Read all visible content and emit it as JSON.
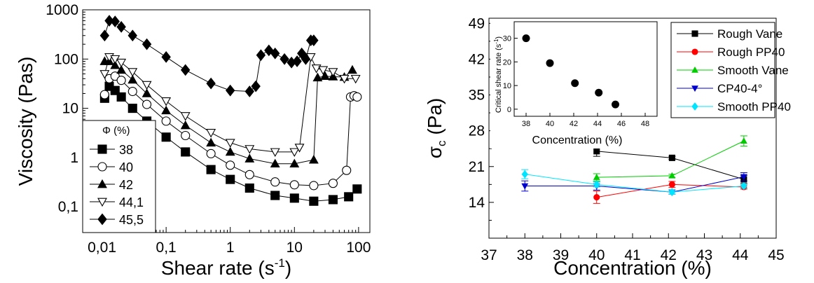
{
  "chart_data": [
    {
      "type": "scatter",
      "xscale": "log",
      "yscale": "log",
      "xlabel": "Shear rate (s",
      "xlabel_sup": "-1",
      "xlabel_close": ")",
      "ylabel": "Viscosity (Pas)",
      "xlim": [
        0.005,
        150
      ],
      "ylim": [
        0.03,
        1000
      ],
      "xticks": [
        0.01,
        0.1,
        1,
        10,
        100
      ],
      "xtick_labels": [
        "0,01",
        "0,1",
        "1",
        "10",
        "100"
      ],
      "yticks": [
        0.1,
        1,
        10,
        100,
        1000
      ],
      "ytick_labels": [
        "0,1",
        "1",
        "10",
        "100",
        "1000"
      ],
      "legend_title": "Φ (%)",
      "legend_position": "bottom-left",
      "series": [
        {
          "name": "38",
          "marker": "square-filled",
          "x": [
            0.011,
            0.013,
            0.016,
            0.02,
            0.03,
            0.05,
            0.1,
            0.2,
            0.5,
            1,
            2,
            5,
            10,
            20,
            40,
            70,
            95
          ],
          "y": [
            16,
            28,
            23,
            17,
            10,
            5.5,
            2.6,
            1.3,
            0.57,
            0.36,
            0.24,
            0.17,
            0.15,
            0.13,
            0.14,
            0.16,
            0.23
          ]
        },
        {
          "name": "40",
          "marker": "circle-open",
          "x": [
            0.011,
            0.013,
            0.016,
            0.02,
            0.03,
            0.05,
            0.1,
            0.2,
            0.5,
            1,
            2,
            5,
            10,
            20,
            40,
            65,
            75,
            85,
            95
          ],
          "y": [
            19,
            40,
            45,
            37,
            22,
            12,
            5.5,
            2.8,
            1.2,
            0.7,
            0.45,
            0.32,
            0.28,
            0.27,
            0.3,
            0.55,
            17,
            18,
            17
          ]
        },
        {
          "name": "42",
          "marker": "triangle-filled",
          "x": [
            0.011,
            0.013,
            0.016,
            0.02,
            0.03,
            0.05,
            0.1,
            0.2,
            0.5,
            1,
            2,
            5,
            10,
            20,
            23,
            30,
            40,
            60,
            80
          ],
          "y": [
            90,
            90,
            75,
            60,
            38,
            20,
            9,
            4.5,
            2,
            1.3,
            0.95,
            0.75,
            0.75,
            0.9,
            42,
            45,
            44,
            43,
            60
          ]
        },
        {
          "name": "44,1",
          "marker": "triangle-down-open",
          "x": [
            0.011,
            0.013,
            0.016,
            0.02,
            0.03,
            0.05,
            0.1,
            0.2,
            0.5,
            1,
            2,
            5,
            10,
            12,
            18,
            22,
            28,
            40,
            60,
            90
          ],
          "y": [
            50,
            110,
            100,
            85,
            55,
            30,
            14,
            7,
            3.2,
            2,
            1.5,
            1.3,
            1.3,
            1.6,
            110,
            65,
            60,
            55,
            40,
            40
          ]
        },
        {
          "name": "45,5",
          "marker": "diamond-filled",
          "x": [
            0.011,
            0.013,
            0.016,
            0.02,
            0.03,
            0.05,
            0.1,
            0.2,
            0.5,
            1,
            2,
            2.5,
            3,
            4,
            5,
            7,
            9,
            11,
            13,
            15,
            18,
            20
          ],
          "y": [
            300,
            600,
            580,
            450,
            300,
            200,
            110,
            60,
            32,
            23,
            22,
            28,
            120,
            150,
            130,
            100,
            85,
            90,
            130,
            100,
            240,
            240
          ]
        }
      ]
    },
    {
      "type": "line",
      "xlabel": "Concentration (%)",
      "ylabel": "σ",
      "ylabel_sub": "c",
      "ylabel_unit": " (Pa)",
      "xlim": [
        37,
        45
      ],
      "ylim": [
        7,
        50
      ],
      "xticks": [
        37,
        38,
        39,
        40,
        41,
        42,
        43,
        44,
        45
      ],
      "yticks": [
        14,
        21,
        28,
        35,
        42,
        49
      ],
      "legend_position": "top-right",
      "series": [
        {
          "name": "Rough Vane",
          "color": "#000000",
          "marker": "square",
          "x": [
            40,
            42.1,
            44.1
          ],
          "y": [
            24,
            22.7,
            18.5
          ],
          "err": [
            1.0,
            0.3,
            0.8
          ]
        },
        {
          "name": "Rough PP40",
          "color": "#ff0000",
          "marker": "circle",
          "x": [
            40,
            42.1,
            44.1
          ],
          "y": [
            15,
            17.5,
            17
          ],
          "err": [
            1.2,
            0.6,
            0.4
          ]
        },
        {
          "name": "Smooth Vane",
          "color": "#00cc00",
          "marker": "triangle",
          "x": [
            40,
            42.1,
            44.1
          ],
          "y": [
            18.9,
            19.2,
            26
          ],
          "err": [
            0.7,
            0.3,
            1.0
          ]
        },
        {
          "name": "CP40-4°",
          "color": "#0000cc",
          "marker": "triangle-down",
          "x": [
            38,
            40,
            42.1,
            44.1
          ],
          "y": [
            17.2,
            17.2,
            16,
            19
          ],
          "err": [
            1.0,
            0.8,
            0.4,
            0.8
          ]
        },
        {
          "name": "Smooth PP40",
          "color": "#00e5ff",
          "marker": "diamond",
          "x": [
            38,
            40,
            42.1,
            44.1
          ],
          "y": [
            19.5,
            17.5,
            16,
            17.2
          ],
          "err": [
            0.9,
            0.5,
            0.4,
            0.4
          ]
        }
      ]
    },
    {
      "type": "scatter",
      "xlabel": "Concentration (%)",
      "ylabel": "Critical shear rate (s",
      "ylabel_sup": "-1",
      "ylabel_close": ")",
      "xlim": [
        37,
        49
      ],
      "ylim": [
        -3,
        37
      ],
      "xticks": [
        38,
        40,
        42,
        44,
        46,
        48
      ],
      "yticks": [
        0,
        10,
        20,
        30
      ],
      "series": [
        {
          "x": [
            38,
            40,
            42.1,
            44.1,
            45.5
          ],
          "y": [
            30,
            19.5,
            11,
            7,
            2
          ]
        }
      ]
    }
  ]
}
